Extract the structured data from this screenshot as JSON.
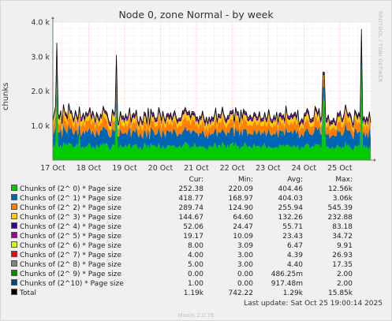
{
  "chart_data": {
    "type": "area",
    "title": "Node 0, zone Normal - by week",
    "ylabel": "chunks",
    "xlabel": "",
    "ylim": [
      0,
      4000
    ],
    "y_ticks": [
      "1.0 k",
      "2.0 k",
      "3.0 k",
      "4.0 k"
    ],
    "y_tick_values": [
      1000,
      2000,
      3000,
      4000
    ],
    "x_ticks": [
      "17 Oct",
      "18 Oct",
      "19 Oct",
      "20 Oct",
      "21 Oct",
      "22 Oct",
      "23 Oct",
      "24 Oct",
      "25 Oct"
    ],
    "x_range_days": [
      0,
      8.86
    ],
    "grid": true,
    "stacked": true,
    "series": [
      {
        "name": "Chunks of (2^ 0) * Page size",
        "color": "#00cc00",
        "cur": "252.38",
        "min": "220.09",
        "avg": "404.46",
        "max": "12.56k"
      },
      {
        "name": "Chunks of (2^ 1) * Page size",
        "color": "#0066b3",
        "cur": "418.77",
        "min": "168.97",
        "avg": "404.03",
        "max": "3.06k"
      },
      {
        "name": "Chunks of (2^ 2) * Page size",
        "color": "#ff8000",
        "cur": "289.74",
        "min": "124.90",
        "avg": "255.94",
        "max": "545.39"
      },
      {
        "name": "Chunks of (2^ 3) * Page size",
        "color": "#ffcc00",
        "cur": "144.67",
        "min": "64.60",
        "avg": "132.26",
        "max": "232.88"
      },
      {
        "name": "Chunks of (2^ 4) * Page size",
        "color": "#330099",
        "cur": "52.06",
        "min": "24.47",
        "avg": "55.71",
        "max": "83.18"
      },
      {
        "name": "Chunks of (2^ 5) * Page size",
        "color": "#990099",
        "cur": "19.17",
        "min": "10.09",
        "avg": "23.43",
        "max": "34.72"
      },
      {
        "name": "Chunks of (2^ 6) * Page size",
        "color": "#ccff00",
        "cur": "8.00",
        "min": "3.09",
        "avg": "6.47",
        "max": "9.91"
      },
      {
        "name": "Chunks of (2^ 7) * Page size",
        "color": "#ff0000",
        "cur": "4.00",
        "min": "3.00",
        "avg": "4.39",
        "max": "26.93"
      },
      {
        "name": "Chunks of (2^ 8) * Page size",
        "color": "#808080",
        "cur": "5.00",
        "min": "3.00",
        "avg": "4.40",
        "max": "17.35"
      },
      {
        "name": "Chunks of (2^ 9) * Page size",
        "color": "#008f00",
        "cur": "0.00",
        "min": "0.00",
        "avg": "486.25m",
        "max": "2.00"
      },
      {
        "name": "Chunks of (2^10) * Page size",
        "color": "#00487d",
        "cur": "1.00",
        "min": "0.00",
        "avg": "917.48m",
        "max": "2.00"
      },
      {
        "name": "Total",
        "color": "#000000",
        "cur": "1.19k",
        "min": "742.22",
        "avg": "1.29k",
        "max": "15.85k"
      }
    ],
    "total_spikes": [
      {
        "day": 0.12,
        "value": 3400
      },
      {
        "day": 0.75,
        "value": 1550
      },
      {
        "day": 1.78,
        "value": 3050
      },
      {
        "day": 3.7,
        "value": 1400
      },
      {
        "day": 7.55,
        "value": 2550
      },
      {
        "day": 8.6,
        "value": 3800
      }
    ]
  },
  "legend_header": {
    "cur": "Cur:",
    "min": "Min:",
    "avg": "Avg:",
    "max": "Max:"
  },
  "last_update": "Last update: Sat Oct 25 19:00:14 2025",
  "footer": "Munin 2.0.76",
  "watermark": "RRDTOOL / TOBI OETIKER"
}
